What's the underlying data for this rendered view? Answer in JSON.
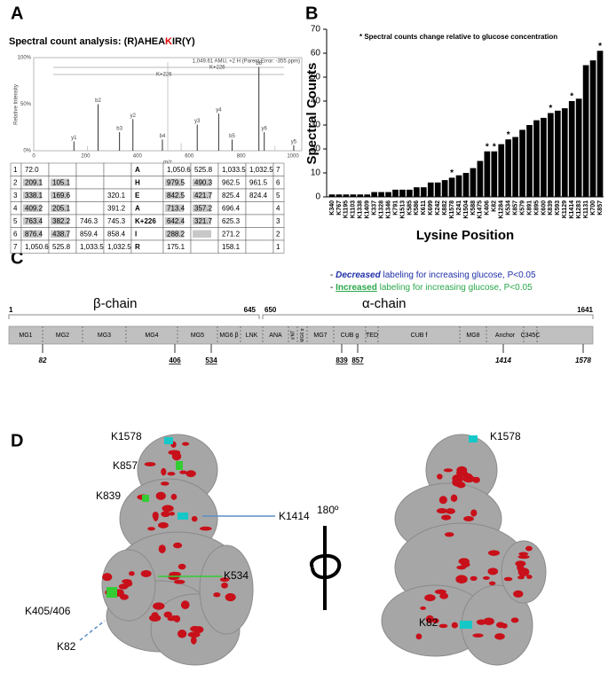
{
  "panels": {
    "a": "A",
    "b": "B",
    "c": "C",
    "d": "D"
  },
  "spectrum": {
    "title_parts": [
      "Spectral count analysis: (R)AHEA",
      "K",
      "IR(Y)"
    ],
    "y_axis_label": "Relative Intensity",
    "x_axis_label": "m/z",
    "yticks": [
      "100%",
      "50%",
      "0%"
    ],
    "xticks": [
      "0",
      "200",
      "400",
      "600",
      "800",
      "1000"
    ],
    "header_note": "1,049.61 AMU, +2 H (Parent Error: -355 ppm)",
    "sequence_marks": [
      "K+226",
      "K+226"
    ],
    "peak_labels": [
      "y1",
      "b2",
      "b3",
      "y2",
      "b4",
      "y3",
      "y4",
      "b5",
      "y6",
      "b6",
      "y5"
    ]
  },
  "table": {
    "rows": [
      [
        "1",
        "72.0",
        "",
        "",
        "",
        "A",
        "1,050.6",
        "525.8",
        "1,033.5",
        "1,032.5",
        "7"
      ],
      [
        "2",
        "209.1",
        "105.1",
        "",
        "",
        "H",
        "979.5",
        "490.3",
        "962.5",
        "961.5",
        "6"
      ],
      [
        "3",
        "338.1",
        "169.6",
        "",
        "320.1",
        "E",
        "842.5",
        "421.7",
        "825.4",
        "824.4",
        "5"
      ],
      [
        "4",
        "409.2",
        "205.1",
        "",
        "391.2",
        "A",
        "713.4",
        "357.2",
        "696.4",
        "",
        "4"
      ],
      [
        "5",
        "763.4",
        "382.2",
        "746.3",
        "745.3",
        "K+226",
        "642.4",
        "321.7",
        "625.3",
        "",
        "3"
      ],
      [
        "6",
        "876.4",
        "438.7",
        "859.4",
        "858.4",
        "I",
        "288.2",
        "",
        "271.2",
        "",
        "2"
      ],
      [
        "7",
        "1,050.6",
        "525.8",
        "1,033.5",
        "1,032.5",
        "R",
        "175.1",
        "",
        "158.1",
        "",
        "1"
      ]
    ]
  },
  "chart_data": {
    "type": "bar",
    "color": "#000000",
    "note": "* Spectral counts change relative to glucose concentration",
    "y_axis_label": "Spectral Counts",
    "x_axis_label": "Lysine Position",
    "categories": [
      "K340",
      "K767",
      "K1195",
      "K1103",
      "K1338",
      "K1409",
      "K337",
      "K1328",
      "K1346",
      "K791",
      "K1513",
      "K585",
      "K586",
      "K611",
      "K699",
      "K242",
      "K882",
      "K1578",
      "K241",
      "K1504",
      "K588",
      "K1475",
      "K406",
      "K82",
      "K1284",
      "K534",
      "K857",
      "K579",
      "K891",
      "K895",
      "K600",
      "K839",
      "K593",
      "K1129",
      "K1414",
      "K1283",
      "K1131",
      "K700",
      "K857"
    ],
    "values": [
      1,
      1,
      1,
      1,
      1,
      1,
      2,
      2,
      2,
      3,
      3,
      3,
      4,
      4,
      6,
      6,
      7,
      8,
      9,
      10,
      12,
      15,
      19,
      19,
      22,
      24,
      25,
      28,
      30,
      32,
      33,
      35,
      36,
      37,
      40,
      41,
      55,
      57,
      61
    ],
    "markers": [
      null,
      null,
      null,
      null,
      null,
      null,
      null,
      null,
      null,
      null,
      null,
      null,
      null,
      null,
      null,
      null,
      null,
      "*",
      null,
      null,
      null,
      null,
      "*",
      "*",
      null,
      "*",
      null,
      null,
      null,
      null,
      null,
      "*",
      null,
      null,
      "*",
      null,
      null,
      null,
      "*"
    ],
    "ylim": [
      0,
      70
    ],
    "yticks": [
      0,
      10,
      20,
      30,
      40,
      50,
      60,
      70
    ]
  },
  "domain_map": {
    "legend": [
      {
        "dash": "- ",
        "key": "Decreased",
        "rest": " labeling for increasing glucose, P<0.05"
      },
      {
        "dash": "- ",
        "key": "Increased",
        "rest": " labeling for increasing glucose, P<0.05"
      }
    ],
    "chains": [
      "β-chain",
      "α-chain"
    ],
    "positions": [
      "1",
      "645",
      "650",
      "1641"
    ],
    "domains": [
      "MG1",
      "MG2",
      "MG3",
      "MG4",
      "MG5",
      "MG6 β",
      "LNK",
      "ANA",
      "α'NT",
      "MG6 α",
      "MG7",
      "CUB g",
      "TED",
      "CUB f",
      "MG8",
      "Anchor",
      "C345C"
    ],
    "sites": [
      {
        "label": "82",
        "change": "decreased"
      },
      {
        "label": "406",
        "change": "increased"
      },
      {
        "label": "534",
        "change": "increased"
      },
      {
        "label": "839",
        "change": "increased"
      },
      {
        "label": "857",
        "change": "increased"
      },
      {
        "label": "1414",
        "change": "decreased"
      },
      {
        "label": "1578",
        "change": "decreased"
      }
    ]
  },
  "structure": {
    "left_labels": [
      {
        "text": "K1578",
        "change": "decreased"
      },
      {
        "text": "K857",
        "change": "increased"
      },
      {
        "text": "K839",
        "change": "increased"
      },
      {
        "text": "K1414",
        "change": "decreased"
      },
      {
        "text": "K534",
        "change": "increased"
      },
      {
        "text": "K405/406",
        "change": "increased"
      },
      {
        "text": "K82",
        "change": "decreased"
      }
    ],
    "rotation": "180º",
    "right_labels": [
      {
        "text": "K1578",
        "change": "decreased"
      },
      {
        "text": "K82",
        "change": "decreased"
      }
    ]
  }
}
